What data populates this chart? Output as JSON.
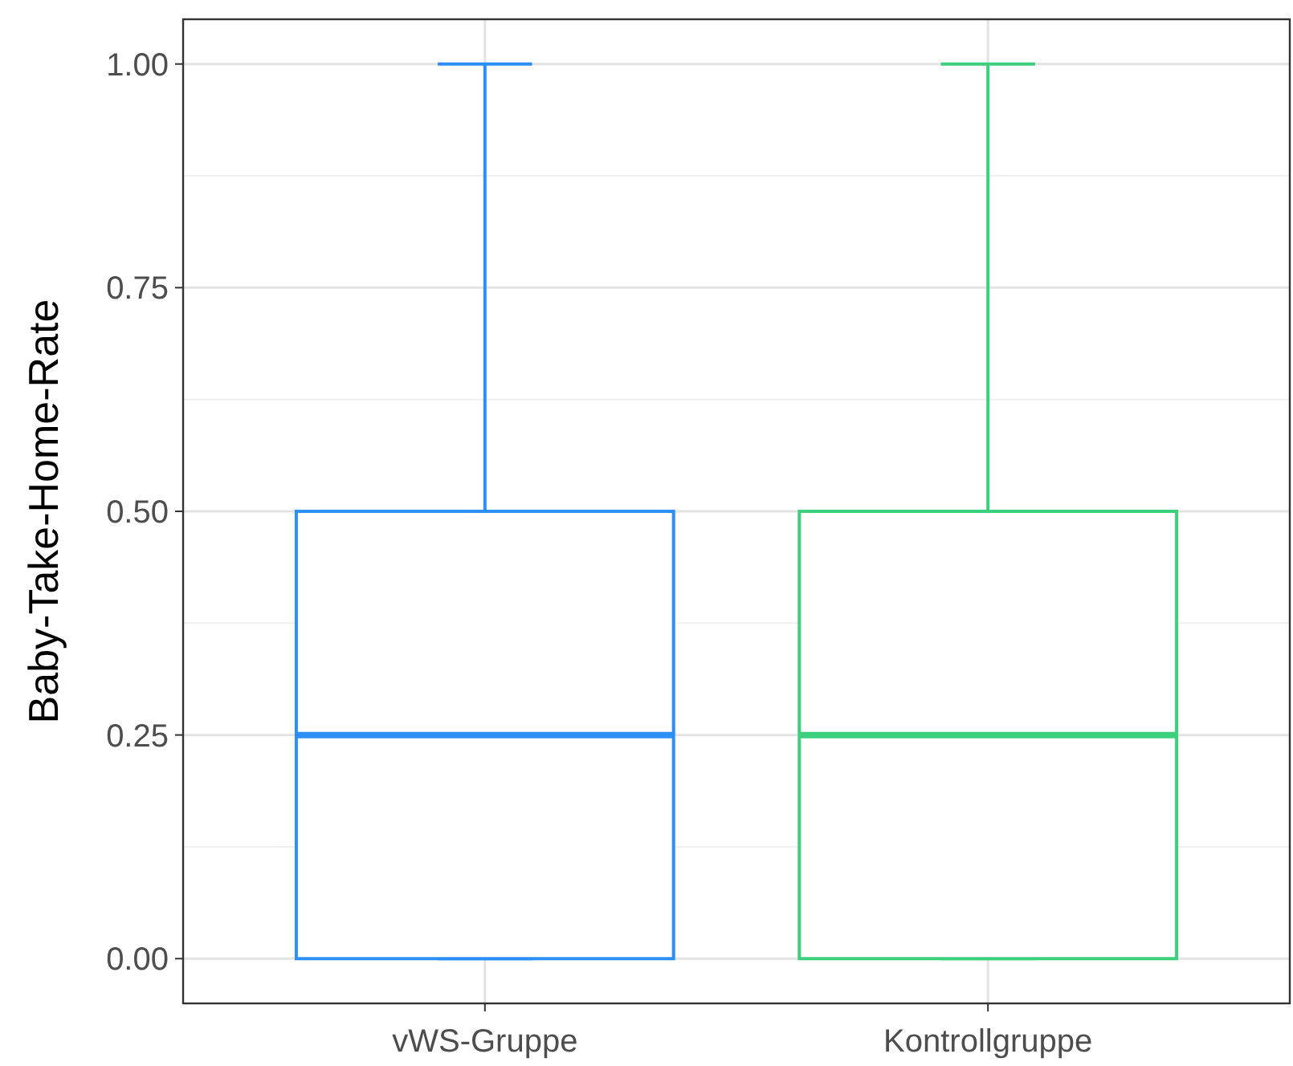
{
  "chart_data": {
    "type": "box",
    "ylabel": "Baby-Take-Home-Rate",
    "categories": [
      "vWS-Gruppe",
      "Kontrollgruppe"
    ],
    "colors": [
      "#2b8ff5",
      "#3ccf7e"
    ],
    "boxes": [
      {
        "low": 0,
        "q1": 0,
        "median": 0.25,
        "q3": 0.5,
        "high": 1
      },
      {
        "low": 0,
        "q1": 0,
        "median": 0.25,
        "q3": 0.5,
        "high": 1
      }
    ],
    "ylim": [
      -0.05,
      1.05
    ],
    "yticks": [
      {
        "value": 0,
        "label": "0.00"
      },
      {
        "value": 0.25,
        "label": "0.25"
      },
      {
        "value": 0.5,
        "label": "0.50"
      },
      {
        "value": 0.75,
        "label": "0.75"
      },
      {
        "value": 1,
        "label": "1.00"
      }
    ],
    "grid": true
  }
}
